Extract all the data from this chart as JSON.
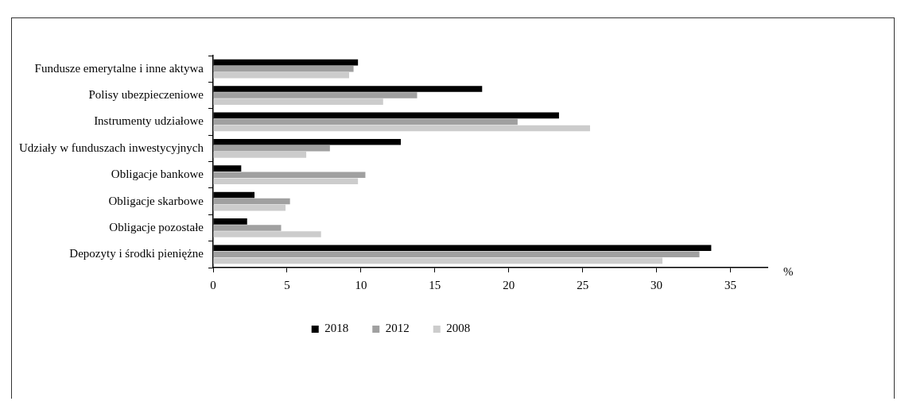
{
  "chart_data": {
    "type": "bar",
    "orientation": "horizontal",
    "xlabel": "%",
    "categories": [
      "Fundusze emerytalne i inne aktywa",
      "Polisy ubezpieczeniowe",
      "Instrumenty udziałowe",
      "Udziały w funduszach inwestycyjnych",
      "Obligacje bankowe",
      "Obligacje skarbowe",
      "Obligacje pozostałe",
      "Depozyty i środki pieniężne"
    ],
    "series": [
      {
        "name": "2018",
        "color": "#000000",
        "values": [
          9.8,
          18.2,
          23.4,
          12.7,
          1.9,
          2.8,
          2.3,
          33.7
        ]
      },
      {
        "name": "2012",
        "color": "#a0a0a0",
        "values": [
          9.5,
          13.8,
          20.6,
          7.9,
          10.3,
          5.2,
          4.6,
          32.9
        ]
      },
      {
        "name": "2008",
        "color": "#cccccc",
        "values": [
          9.2,
          11.5,
          25.5,
          6.3,
          9.8,
          4.9,
          7.3,
          30.4
        ]
      }
    ],
    "xlim": [
      0,
      37.5
    ],
    "xticks": [
      0,
      5,
      10,
      15,
      20,
      25,
      30,
      35
    ],
    "grid": false,
    "legend": "bottom"
  }
}
